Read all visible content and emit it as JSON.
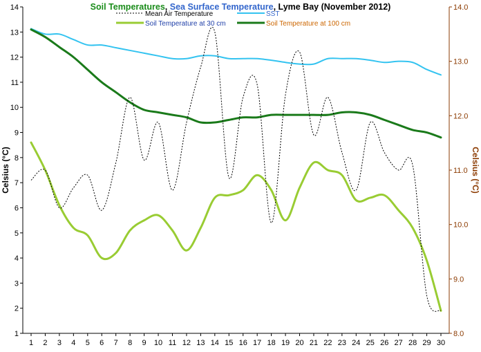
{
  "chart_data": {
    "type": "line",
    "title_parts": [
      {
        "text": "Soil Temperatures",
        "color": "#1a8c1a"
      },
      {
        "text": ", ",
        "color": "#000000"
      },
      {
        "text": "Sea Surface Temperature",
        "color": "#3366cc"
      },
      {
        "text": ", Lyme Bay (November 2012)",
        "color": "#000000"
      }
    ],
    "ylabel_left": "Celsius (°C)",
    "ylabel_right": "Celsius (°C)",
    "ylim_left": [
      1,
      14
    ],
    "ylim_right": [
      8.0,
      14.0
    ],
    "y_ticks_left": [
      "1",
      "2",
      "3",
      "4",
      "5",
      "6",
      "7",
      "8",
      "9",
      "10",
      "11",
      "12",
      "13",
      "14"
    ],
    "y_ticks_right": [
      "8.0",
      "9.0",
      "10.0",
      "11.0",
      "12.0",
      "13.0",
      "14.0"
    ],
    "x": [
      "1",
      "2",
      "3",
      "4",
      "5",
      "6",
      "7",
      "8",
      "9",
      "10",
      "11",
      "12",
      "13",
      "14",
      "15",
      "16",
      "17",
      "18",
      "19",
      "20",
      "21",
      "22",
      "23",
      "24",
      "25",
      "26",
      "27",
      "28",
      "29",
      "30"
    ],
    "grid": false,
    "legend_placement": "top",
    "series": [
      {
        "name": "Mean Air Temperature",
        "axis": "left",
        "color": "#000000",
        "style": "dotted",
        "legend_text_color": "#000000",
        "values": [
          7.1,
          7.5,
          6.0,
          6.8,
          7.3,
          5.9,
          7.8,
          10.4,
          7.9,
          9.4,
          6.7,
          9.4,
          11.6,
          13.0,
          7.2,
          10.4,
          10.9,
          5.4,
          10.5,
          12.2,
          8.9,
          10.4,
          8.2,
          6.7,
          9.4,
          8.2,
          7.5,
          7.7,
          2.5,
          1.9
        ]
      },
      {
        "name": "SST",
        "axis": "right",
        "color": "#33c3f0",
        "style": "solid",
        "legend_text_color": "#3366cc",
        "values": [
          13.6,
          13.5,
          13.5,
          13.4,
          13.3,
          13.3,
          13.25,
          13.2,
          13.15,
          13.1,
          13.05,
          13.05,
          13.1,
          13.1,
          13.05,
          13.05,
          13.05,
          13.02,
          12.98,
          12.95,
          12.95,
          13.05,
          13.05,
          13.05,
          13.02,
          12.98,
          13.0,
          12.98,
          12.85,
          12.75
        ]
      },
      {
        "name": "Soil Temperature at 30 cm",
        "axis": "left",
        "color": "#99cc33",
        "style": "solid-thick",
        "legend_text_color": "#1f3fa8",
        "values": [
          8.6,
          7.5,
          6.1,
          5.2,
          4.9,
          4.0,
          4.2,
          5.1,
          5.5,
          5.7,
          5.1,
          4.3,
          5.2,
          6.4,
          6.5,
          6.7,
          7.3,
          6.7,
          5.5,
          6.8,
          7.8,
          7.5,
          7.3,
          6.3,
          6.4,
          6.5,
          5.9,
          5.2,
          3.9,
          1.9
        ]
      },
      {
        "name": "Soil Temperature at 100 cm",
        "axis": "left",
        "color": "#1a7a1a",
        "style": "solid-thick",
        "legend_text_color": "#cc6600",
        "values": [
          13.1,
          12.8,
          12.4,
          12.0,
          11.5,
          11.0,
          10.6,
          10.2,
          9.9,
          9.8,
          9.7,
          9.6,
          9.4,
          9.4,
          9.5,
          9.6,
          9.6,
          9.7,
          9.7,
          9.7,
          9.7,
          9.7,
          9.8,
          9.8,
          9.7,
          9.5,
          9.3,
          9.1,
          9.0,
          8.8
        ]
      }
    ]
  }
}
